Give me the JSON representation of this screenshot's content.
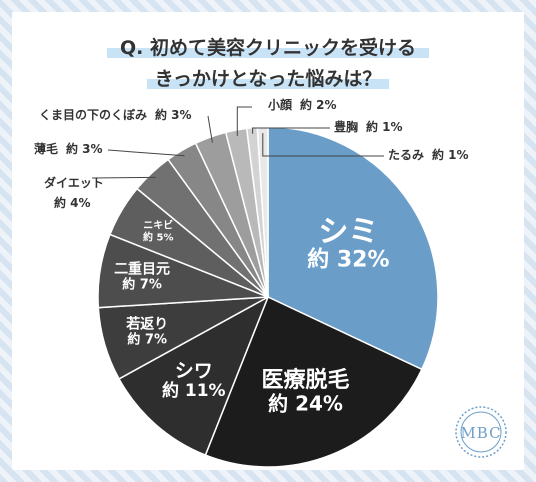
{
  "title": [
    "Q. 初めて美容クリニックを受ける",
    "きっかけとなった悩みは？"
  ],
  "logo": "MBC",
  "colors": {
    "accent": "#6a9ec9",
    "highlight": "#c9e3f6"
  },
  "chart_data": {
    "type": "pie",
    "start_angle": "12 o'clock, clockwise",
    "slices": [
      {
        "label": "シミ",
        "value_label": "約 32%",
        "value": 32,
        "color": "#6a9ec9",
        "text_color": "#ffffff"
      },
      {
        "label": "医療脱毛",
        "value_label": "約 24%",
        "value": 24,
        "color": "#1c1c1c",
        "text_color": "#ffffff"
      },
      {
        "label": "シワ",
        "value_label": "約 11%",
        "value": 11,
        "color": "#2e2e2e",
        "text_color": "#ffffff"
      },
      {
        "label": "若返り",
        "value_label": "約 7%",
        "value": 7,
        "color": "#3d3d3d",
        "text_color": "#ffffff"
      },
      {
        "label": "二重目元",
        "value_label": "約 7%",
        "value": 7,
        "color": "#4d4d4d",
        "text_color": "#ffffff"
      },
      {
        "label": "ニキビ",
        "value_label": "約 5%",
        "value": 5,
        "color": "#5e5e5e",
        "text_color": "#ffffff"
      },
      {
        "label": "ダイエット",
        "value_label": "約 4%",
        "value": 4,
        "color": "#717171",
        "text_color": "#333333"
      },
      {
        "label": "薄毛",
        "value_label": "約 3%",
        "value": 3,
        "color": "#878787",
        "text_color": "#333333"
      },
      {
        "label": "くま目の下のくぼみ",
        "value_label": "約 3%",
        "value": 3,
        "color": "#9d9d9d",
        "text_color": "#333333"
      },
      {
        "label": "小顔",
        "value_label": "約 2%",
        "value": 2,
        "color": "#b9b9b9",
        "text_color": "#333333"
      },
      {
        "label": "豊胸",
        "value_label": "約 1%",
        "value": 1,
        "color": "#d3d3d3",
        "text_color": "#333333"
      },
      {
        "label": "たるみ",
        "value_label": "約 1%",
        "value": 1,
        "color": "#e8e8e8",
        "text_color": "#333333"
      }
    ]
  }
}
